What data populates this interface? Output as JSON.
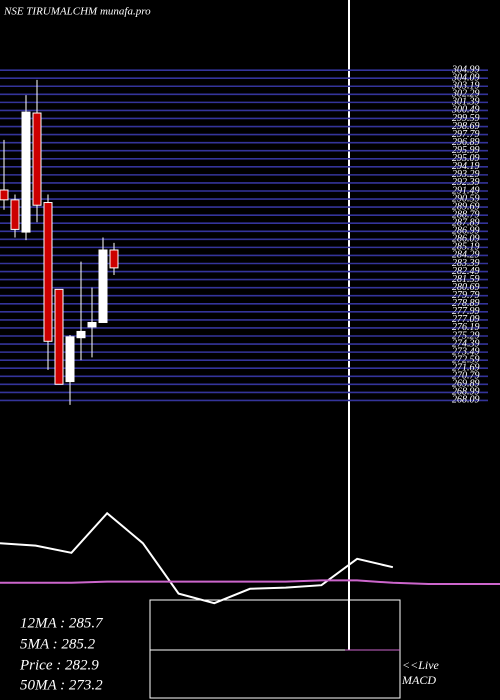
{
  "chart_data": [
    {
      "type": "candlestick",
      "title": "NSE TIRUMALCHM munafa.pro",
      "categories": [
        null,
        null,
        null,
        null,
        null,
        null,
        null,
        null,
        null,
        null,
        null
      ],
      "open": [
        291.6,
        290.5,
        286.9,
        300.2,
        290.2,
        280.5,
        270.2,
        275.1,
        276.3,
        276.8,
        284.9
      ],
      "high": [
        297.2,
        291.1,
        302.2,
        303.9,
        291.1,
        280.5,
        275.4,
        283.6,
        280.7,
        286.3,
        285.7
      ],
      "low": [
        289.4,
        286.3,
        286.0,
        288.0,
        271.5,
        269.9,
        267.6,
        272.6,
        272.9,
        276.8,
        282.1
      ],
      "close": [
        290.5,
        287.2,
        300.3,
        289.9,
        274.7,
        269.9,
        275.2,
        275.8,
        276.8,
        284.9,
        282.9
      ],
      "up_color": "#ffffff",
      "down_color": "#cc0000",
      "grid_color": "#34349a",
      "ylim": [
        266.8,
        305.9
      ],
      "yticks": [
        304.99,
        304.09,
        303.19,
        302.29,
        301.39,
        300.49,
        299.59,
        298.69,
        297.79,
        296.89,
        295.99,
        295.09,
        294.19,
        293.29,
        292.39,
        291.49,
        290.59,
        289.69,
        288.79,
        287.89,
        286.99,
        286.09,
        285.19,
        284.29,
        283.39,
        282.49,
        281.59,
        280.69,
        279.79,
        278.89,
        277.99,
        277.09,
        276.19,
        275.29,
        274.39,
        273.49,
        272.59,
        271.69,
        270.79,
        269.89,
        268.99,
        268.09
      ],
      "grid": true
    },
    {
      "type": "line",
      "x": [
        0,
        1,
        2,
        3,
        4,
        5,
        6,
        7,
        8,
        9,
        10,
        11,
        12,
        13,
        14
      ],
      "series": [
        {
          "color": "#ffffff",
          "values": [
            64,
            62,
            56,
            89,
            64,
            22,
            14,
            26,
            27,
            29,
            51,
            44,
            null,
            null,
            null
          ]
        },
        {
          "color": "#cc66cc",
          "values": [
            31,
            31,
            31,
            32,
            32,
            32,
            32,
            32,
            32,
            33,
            33,
            31,
            30,
            30,
            30
          ]
        }
      ],
      "xlim": [
        0,
        14
      ],
      "ylim": [
        0,
        100
      ],
      "annotations": [
        "12MA : 285.7",
        "5MA : 285.2",
        "Price   : 282.9",
        "50MA : 273.2",
        "<<Live",
        "MACD"
      ]
    }
  ]
}
